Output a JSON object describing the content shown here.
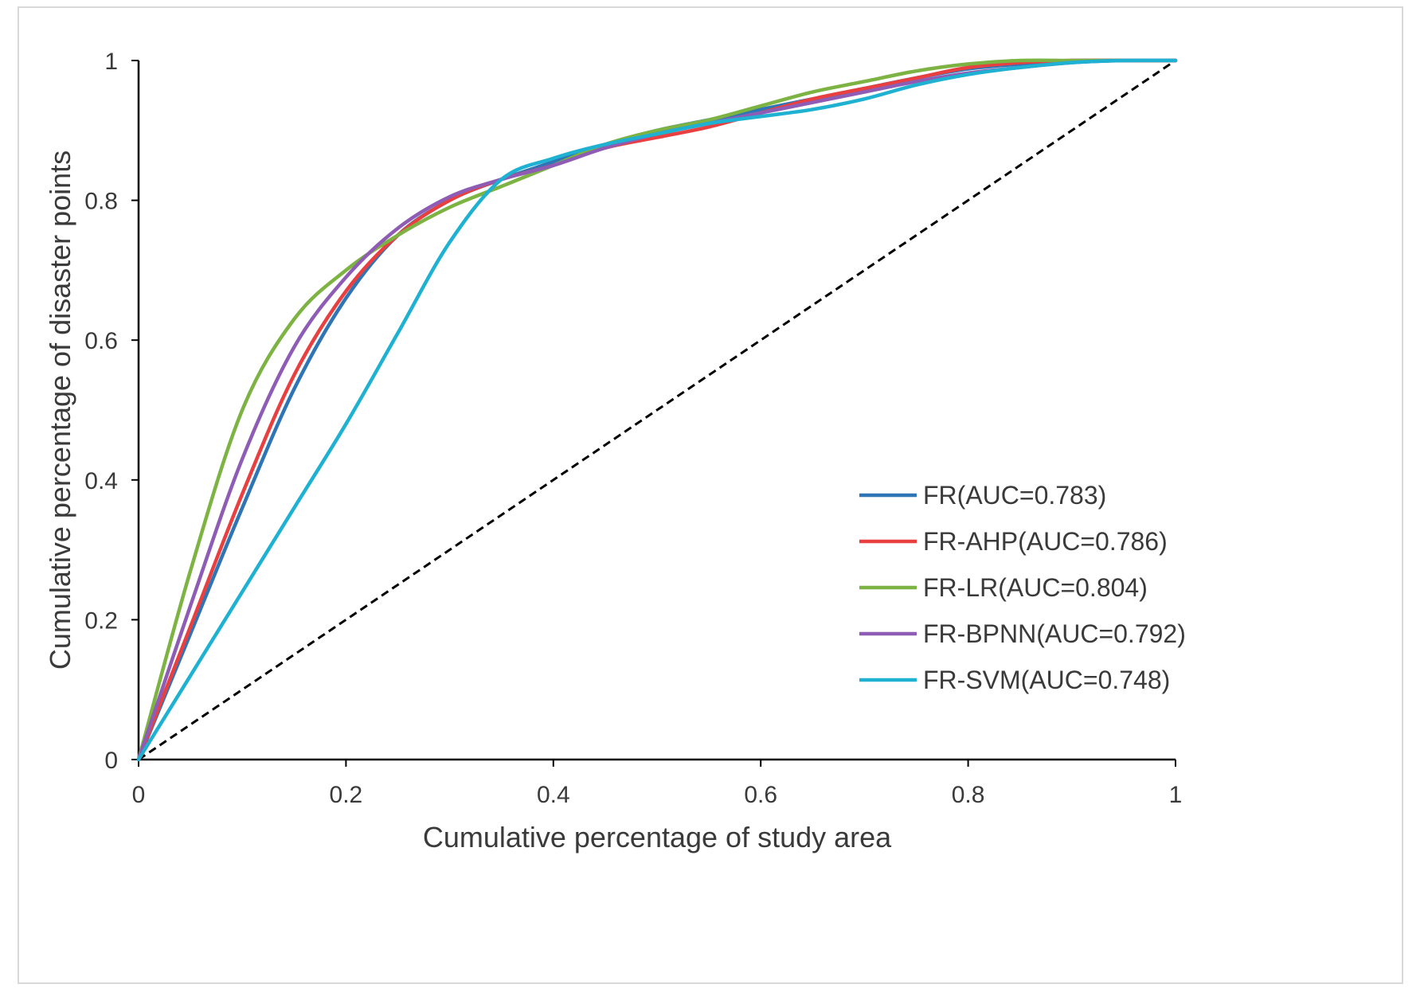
{
  "chart_data": {
    "type": "line",
    "title": "",
    "xlabel": "Cumulative percentage of study area",
    "ylabel": "Cumulative percentage of disaster points",
    "xlim": [
      0,
      1
    ],
    "ylim": [
      0,
      1
    ],
    "x_ticks": [
      0,
      0.2,
      0.4,
      0.6,
      0.8,
      1
    ],
    "x_tick_labels": [
      "0",
      "0.2",
      "0.4",
      "0.6",
      "0.8",
      "1"
    ],
    "y_ticks": [
      0,
      0.2,
      0.4,
      0.6,
      0.8,
      1
    ],
    "y_tick_labels": [
      "0",
      "0.2",
      "0.4",
      "0.6",
      "0.8",
      "1"
    ],
    "grid": false,
    "legend_position": "bottom-right",
    "reference_line": {
      "name": "random",
      "style": "dashed",
      "color": "#000000",
      "x": [
        0,
        1
      ],
      "y": [
        0,
        1
      ]
    },
    "series": [
      {
        "name": "FR(AUC=0.783)",
        "color": "#2e75b6",
        "x": [
          0,
          0.05,
          0.1,
          0.15,
          0.2,
          0.25,
          0.3,
          0.35,
          0.4,
          0.45,
          0.5,
          0.55,
          0.6,
          0.65,
          0.7,
          0.75,
          0.8,
          0.85,
          0.9,
          0.95,
          1.0
        ],
        "y": [
          0,
          0.18,
          0.36,
          0.53,
          0.66,
          0.75,
          0.8,
          0.83,
          0.855,
          0.88,
          0.9,
          0.915,
          0.93,
          0.945,
          0.96,
          0.975,
          0.988,
          0.995,
          1.0,
          1.0,
          1.0
        ]
      },
      {
        "name": "FR-AHP(AUC=0.786)",
        "color": "#e84040",
        "x": [
          0,
          0.05,
          0.1,
          0.15,
          0.2,
          0.25,
          0.3,
          0.35,
          0.4,
          0.45,
          0.5,
          0.55,
          0.6,
          0.65,
          0.7,
          0.75,
          0.8,
          0.85,
          0.9,
          0.95,
          1.0
        ],
        "y": [
          0,
          0.19,
          0.38,
          0.55,
          0.67,
          0.75,
          0.8,
          0.83,
          0.85,
          0.875,
          0.89,
          0.905,
          0.925,
          0.945,
          0.96,
          0.975,
          0.99,
          0.997,
          1.0,
          1.0,
          1.0
        ]
      },
      {
        "name": "FR-LR(AUC=0.804)",
        "color": "#7cb342",
        "x": [
          0,
          0.05,
          0.1,
          0.15,
          0.2,
          0.25,
          0.3,
          0.35,
          0.4,
          0.45,
          0.5,
          0.55,
          0.6,
          0.65,
          0.7,
          0.75,
          0.8,
          0.85,
          0.9,
          0.95,
          1.0
        ],
        "y": [
          0,
          0.27,
          0.5,
          0.63,
          0.7,
          0.75,
          0.79,
          0.82,
          0.85,
          0.88,
          0.9,
          0.915,
          0.935,
          0.955,
          0.97,
          0.985,
          0.995,
          1.0,
          1.0,
          1.0,
          1.0
        ]
      },
      {
        "name": "FR-BPNN(AUC=0.792)",
        "color": "#8e5cb5",
        "x": [
          0,
          0.05,
          0.1,
          0.15,
          0.2,
          0.25,
          0.3,
          0.35,
          0.4,
          0.45,
          0.5,
          0.55,
          0.6,
          0.65,
          0.7,
          0.75,
          0.8,
          0.85,
          0.9,
          0.95,
          1.0
        ],
        "y": [
          0,
          0.22,
          0.43,
          0.59,
          0.69,
          0.76,
          0.805,
          0.83,
          0.85,
          0.875,
          0.895,
          0.91,
          0.925,
          0.94,
          0.955,
          0.97,
          0.982,
          0.99,
          0.997,
          1.0,
          1.0
        ]
      },
      {
        "name": "FR-SVM(AUC=0.748)",
        "color": "#1fb1d1",
        "x": [
          0,
          0.05,
          0.1,
          0.15,
          0.2,
          0.25,
          0.3,
          0.35,
          0.4,
          0.45,
          0.5,
          0.55,
          0.6,
          0.65,
          0.7,
          0.75,
          0.8,
          0.85,
          0.9,
          0.95,
          1.0
        ],
        "y": [
          0,
          0.12,
          0.24,
          0.36,
          0.48,
          0.61,
          0.74,
          0.83,
          0.86,
          0.88,
          0.895,
          0.91,
          0.92,
          0.93,
          0.945,
          0.965,
          0.98,
          0.99,
          0.997,
          1.0,
          1.0
        ]
      }
    ]
  }
}
